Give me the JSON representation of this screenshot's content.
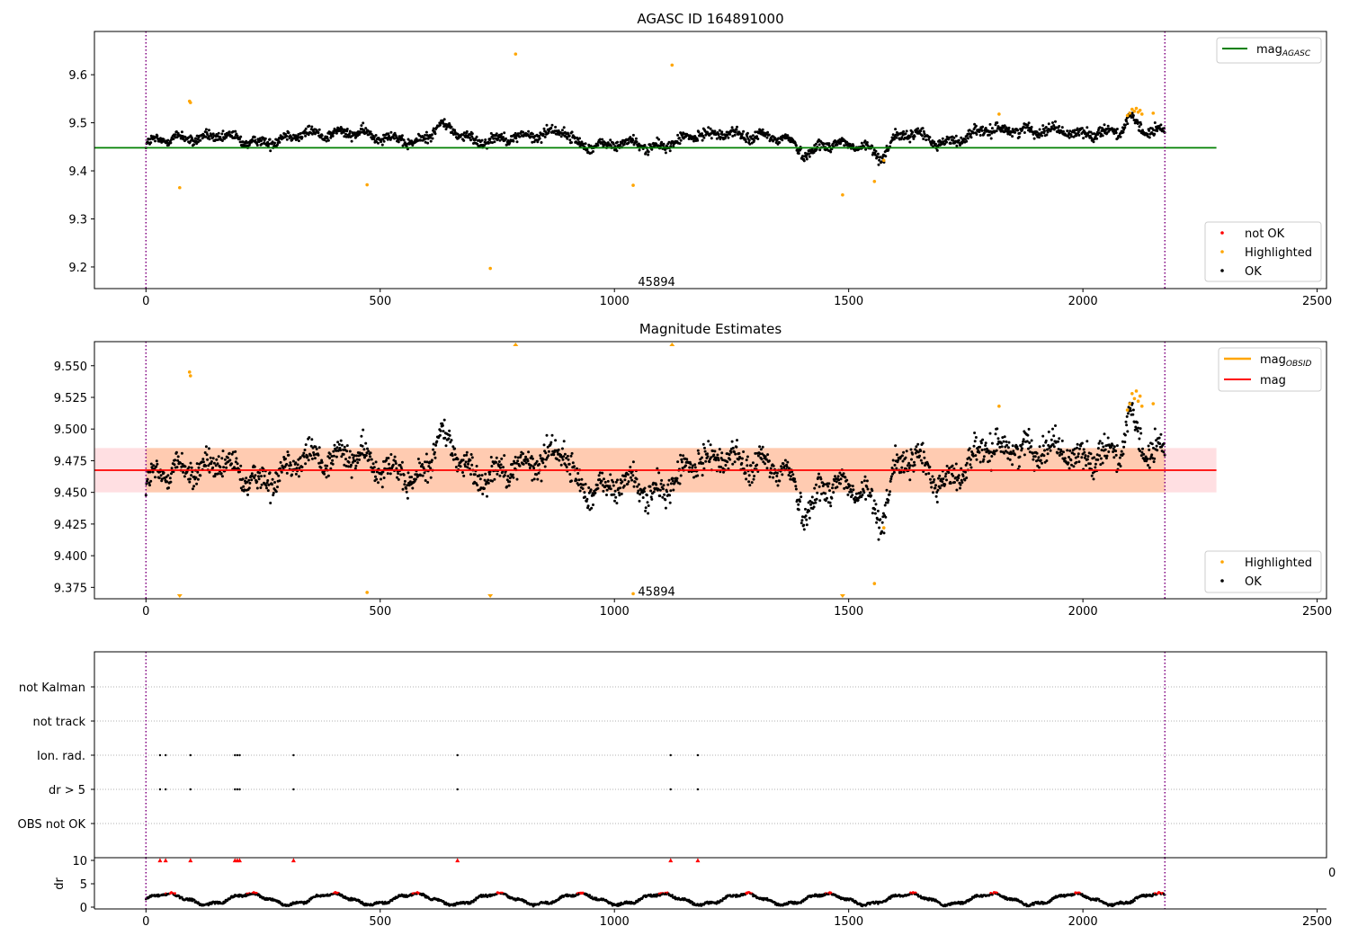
{
  "chart_data": [
    {
      "type": "scatter",
      "title": "AGASC ID 164891000",
      "xlim": [
        -110,
        2520
      ],
      "ylim": [
        9.155,
        9.69
      ],
      "xticks": [
        0,
        500,
        1000,
        1500,
        2000,
        2500
      ],
      "yticks": [
        9.2,
        9.3,
        9.4,
        9.5,
        9.6
      ],
      "ytick_labels": [
        "9.2",
        "9.3",
        "9.4",
        "9.5",
        "9.6"
      ],
      "vlines": [
        0,
        2175
      ],
      "annotation": {
        "text": "45894",
        "x": 1090,
        "y": 9.17
      },
      "mag_agasc": 9.448,
      "mag_agasc_xrange": [
        -110,
        2285
      ],
      "legend_upper": [
        {
          "label": "mag",
          "sub": "AGASC",
          "color": "#008000"
        }
      ],
      "legend_lower": [
        {
          "label": "not OK",
          "color": "#ff0000"
        },
        {
          "label": "Highlighted",
          "color": "#ffa500"
        },
        {
          "label": "OK",
          "color": "#000000"
        }
      ],
      "ok_profile": [
        [
          0,
          9.455
        ],
        [
          80,
          9.47
        ],
        [
          140,
          9.472
        ],
        [
          220,
          9.46
        ],
        [
          300,
          9.468
        ],
        [
          360,
          9.478
        ],
        [
          420,
          9.482
        ],
        [
          480,
          9.47
        ],
        [
          540,
          9.472
        ],
        [
          575,
          9.455
        ],
        [
          600,
          9.47
        ],
        [
          630,
          9.492
        ],
        [
          660,
          9.485
        ],
        [
          700,
          9.465
        ],
        [
          750,
          9.462
        ],
        [
          800,
          9.472
        ],
        [
          850,
          9.48
        ],
        [
          890,
          9.482
        ],
        [
          920,
          9.452
        ],
        [
          960,
          9.455
        ],
        [
          1000,
          9.458
        ],
        [
          1040,
          9.455
        ],
        [
          1080,
          9.445
        ],
        [
          1120,
          9.462
        ],
        [
          1160,
          9.47
        ],
        [
          1200,
          9.472
        ],
        [
          1250,
          9.482
        ],
        [
          1290,
          9.472
        ],
        [
          1330,
          9.468
        ],
        [
          1380,
          9.462
        ],
        [
          1410,
          9.435
        ],
        [
          1440,
          9.455
        ],
        [
          1480,
          9.452
        ],
        [
          1540,
          9.45
        ],
        [
          1570,
          9.432
        ],
        [
          1600,
          9.468
        ],
        [
          1650,
          9.475
        ],
        [
          1700,
          9.46
        ],
        [
          1750,
          9.468
        ],
        [
          1800,
          9.485
        ],
        [
          1850,
          9.49
        ],
        [
          1900,
          9.48
        ],
        [
          1950,
          9.485
        ],
        [
          2000,
          9.48
        ],
        [
          2050,
          9.478
        ],
        [
          2080,
          9.48
        ],
        [
          2100,
          9.51
        ],
        [
          2130,
          9.488
        ],
        [
          2175,
          9.48
        ]
      ],
      "ok_noise": 0.014,
      "highlighted_points": [
        [
          72,
          9.365
        ],
        [
          93,
          9.545
        ],
        [
          95,
          9.542
        ],
        [
          472,
          9.371
        ],
        [
          735,
          9.197
        ],
        [
          789,
          9.643
        ],
        [
          1040,
          9.37
        ],
        [
          1123,
          9.62
        ],
        [
          1487,
          9.35
        ],
        [
          1555,
          9.378
        ],
        [
          1575,
          9.422
        ],
        [
          1821,
          9.518
        ],
        [
          2095,
          9.515
        ],
        [
          2100,
          9.52
        ],
        [
          2105,
          9.528
        ],
        [
          2110,
          9.524
        ],
        [
          2114,
          9.53
        ],
        [
          2118,
          9.522
        ],
        [
          2122,
          9.526
        ],
        [
          2126,
          9.518
        ],
        [
          2150,
          9.52
        ]
      ]
    },
    {
      "type": "scatter",
      "title": "Magnitude Estimates",
      "xlim": [
        -110,
        2520
      ],
      "ylim": [
        9.366,
        9.569
      ],
      "xticks": [
        0,
        500,
        1000,
        1500,
        2000,
        2500
      ],
      "yticks": [
        9.375,
        9.4,
        9.425,
        9.45,
        9.475,
        9.5,
        9.525,
        9.55
      ],
      "ytick_labels": [
        "9.375",
        "9.400",
        "9.425",
        "9.450",
        "9.475",
        "9.500",
        "9.525",
        "9.550"
      ],
      "vlines": [
        0,
        2175
      ],
      "annotation": {
        "text": "45894",
        "x": 1090,
        "y": 9.372
      },
      "mag": 9.4675,
      "mag_band": [
        9.45,
        9.485
      ],
      "mag_xrange": [
        -110,
        2285
      ],
      "obsid_band": [
        9.45,
        9.485
      ],
      "obsid_xrange": [
        0,
        2175
      ],
      "legend_upper": [
        {
          "label": "mag",
          "sub": "OBSID",
          "color": "#ffa500"
        },
        {
          "label": "mag",
          "sub": "",
          "color": "#ff0000"
        }
      ],
      "legend_lower": [
        {
          "label": "Highlighted",
          "color": "#ffa500"
        },
        {
          "label": "OK",
          "color": "#000000"
        }
      ],
      "clipped_low_x": [
        72,
        735,
        1487
      ],
      "clipped_high_x": [
        789,
        1123
      ]
    },
    {
      "type": "scatter",
      "title": "",
      "xlim": [
        -110,
        2520
      ],
      "categories": [
        "not Kalman",
        "not track",
        "Ion. rad.",
        "dr > 5",
        "OBS not OK"
      ],
      "flag_x": [
        30,
        42,
        95,
        190,
        195,
        200,
        315,
        665,
        1120,
        1178
      ],
      "flag_rows": [
        "Ion. rad.",
        "dr > 5"
      ],
      "vlines": [
        0,
        2175
      ]
    },
    {
      "type": "line",
      "title": "",
      "ylabel": "dr",
      "xlim": [
        -110,
        2520
      ],
      "ylim": [
        -0.3,
        11
      ],
      "xticks": [
        0,
        500,
        1000,
        1500,
        2000,
        2500
      ],
      "yticks": [
        0,
        5,
        10
      ],
      "ytick_labels": [
        "0",
        "5",
        "10"
      ],
      "vlines": [
        0,
        2175
      ],
      "clipped_high_x": [
        30,
        42,
        95,
        190,
        195,
        200,
        315,
        665,
        1120,
        1178
      ],
      "stray_tick_label": "0"
    }
  ]
}
